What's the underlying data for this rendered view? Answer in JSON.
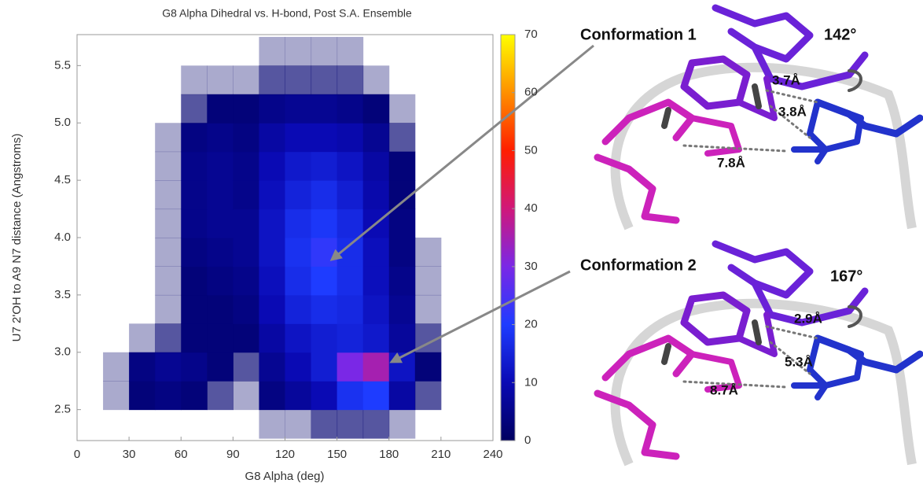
{
  "chart_data": {
    "type": "heatmap",
    "title": "G8 Alpha Dihedral vs. H-bond, Post S.A. Ensemble",
    "x_label": "G8 Alpha (deg)",
    "y_label": "U7 2'OH to A9 N7 distance (Angstroms)",
    "xbins": [
      0,
      15,
      30,
      45,
      60,
      75,
      90,
      105,
      120,
      135,
      150,
      165,
      180,
      195,
      210,
      225,
      240
    ],
    "ybins": [
      2.25,
      2.5,
      2.75,
      3,
      3.25,
      3.5,
      3.75,
      4,
      4.25,
      4.5,
      4.75,
      5,
      5.25,
      5.5,
      5.75
    ],
    "values": [
      [
        0,
        0,
        0,
        0,
        0,
        0,
        0,
        1,
        1,
        2,
        2,
        2,
        1,
        0,
        0,
        0
      ],
      [
        0,
        1,
        3,
        4,
        3,
        2,
        1,
        4,
        7,
        10,
        18,
        20,
        8,
        2,
        0,
        0
      ],
      [
        0,
        1,
        4,
        6,
        5,
        3,
        2,
        6,
        10,
        14,
        30,
        35,
        12,
        3,
        0,
        0
      ],
      [
        0,
        0,
        1,
        2,
        3,
        3,
        3,
        8,
        12,
        14,
        15,
        13,
        7,
        2,
        0,
        0
      ],
      [
        0,
        0,
        0,
        1,
        3,
        3,
        4,
        10,
        15,
        17,
        16,
        12,
        6,
        1,
        0,
        0
      ],
      [
        0,
        0,
        0,
        1,
        3,
        4,
        5,
        11,
        17,
        20,
        17,
        11,
        5,
        1,
        0,
        0
      ],
      [
        0,
        0,
        0,
        1,
        4,
        5,
        6,
        12,
        18,
        22,
        17,
        11,
        4,
        1,
        0,
        0
      ],
      [
        0,
        0,
        0,
        1,
        5,
        6,
        6,
        12,
        17,
        19,
        16,
        10,
        4,
        0,
        0,
        0
      ],
      [
        0,
        0,
        0,
        1,
        5,
        6,
        5,
        11,
        15,
        17,
        14,
        9,
        3,
        0,
        0,
        0
      ],
      [
        0,
        0,
        0,
        1,
        5,
        6,
        5,
        10,
        13,
        14,
        12,
        8,
        3,
        0,
        0,
        0
      ],
      [
        0,
        0,
        0,
        1,
        4,
        5,
        4,
        8,
        10,
        10,
        9,
        6,
        2,
        0,
        0,
        0
      ],
      [
        0,
        0,
        0,
        0,
        2,
        3,
        3,
        5,
        6,
        6,
        5,
        3,
        1,
        0,
        0,
        0
      ],
      [
        0,
        0,
        0,
        0,
        1,
        1,
        1,
        2,
        2,
        2,
        2,
        1,
        0,
        0,
        0,
        0
      ],
      [
        0,
        0,
        0,
        0,
        0,
        0,
        0,
        1,
        1,
        1,
        1,
        0,
        0,
        0,
        0,
        0
      ]
    ],
    "xlim": [
      0,
      240
    ],
    "xticks": [
      0,
      30,
      60,
      90,
      120,
      150,
      180,
      210,
      240
    ],
    "ylim": [
      2.23,
      5.77
    ],
    "yticks": [
      2.5,
      {
        "value": 3,
        "label": "3.0"
      },
      3.5,
      {
        "value": 4,
        "label": "4.0"
      },
      4.5,
      {
        "value": 5,
        "label": "5.0"
      },
      5.5
    ],
    "clim": [
      0,
      70
    ],
    "cticks": [
      0,
      10,
      20,
      30,
      40,
      50,
      60,
      70
    ],
    "colormap": [
      "#000060",
      "#0a0ab4",
      "#1e3cff",
      "#7a28e6",
      "#d0187a",
      "#ff1e00",
      "#ff9000",
      "#ffff00"
    ]
  },
  "panels": [
    {
      "label": "Conformation 1",
      "angle": "142°",
      "distances": [
        "3.7Å",
        "3.8Å",
        "7.8Å"
      ]
    },
    {
      "label": "Conformation 2",
      "angle": "167°",
      "distances": [
        "2.9Å",
        "5.3Å",
        "8.7Å"
      ]
    }
  ]
}
